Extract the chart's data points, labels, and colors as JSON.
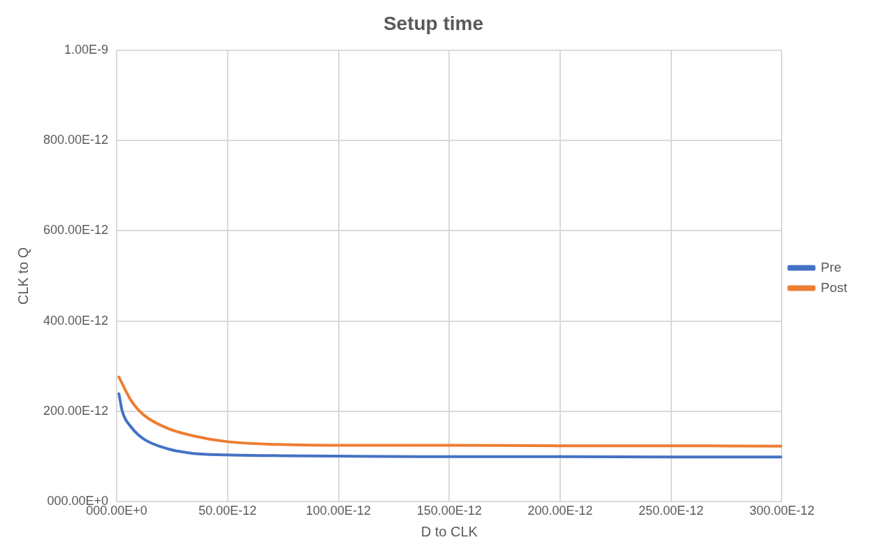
{
  "chart_data": {
    "type": "line",
    "title": "Setup time",
    "xlabel": "D to CLK",
    "ylabel": "CLK to Q",
    "legend": "right",
    "grid": true,
    "marker": "none",
    "xlim": [
      0,
      3e-10
    ],
    "xticks": [
      {
        "value": 0,
        "label": "000.00E+0"
      },
      {
        "value": 5e-11,
        "label": "50.00E-12"
      },
      {
        "value": 1e-10,
        "label": "100.00E-12"
      },
      {
        "value": 1.5e-10,
        "label": "150.00E-12"
      },
      {
        "value": 2e-10,
        "label": "200.00E-12"
      },
      {
        "value": 2.5e-10,
        "label": "250.00E-12"
      },
      {
        "value": 3e-10,
        "label": "300.00E-12"
      }
    ],
    "ylim": [
      0,
      1e-09
    ],
    "yticks": [
      {
        "value": 0,
        "label": "000.00E+0"
      },
      {
        "value": 2e-10,
        "label": "200.00E-12"
      },
      {
        "value": 4e-10,
        "label": "400.00E-12"
      },
      {
        "value": 6e-10,
        "label": "600.00E-12"
      },
      {
        "value": 8e-10,
        "label": "800.00E-12"
      },
      {
        "value": 1e-09,
        "label": "1.00E-9"
      }
    ],
    "series": [
      {
        "name": "Pre",
        "color": "#4472c4",
        "x": [
          1e-12,
          2.6e-12,
          6.6e-12,
          1.25e-11,
          2.33e-11,
          3.45e-11,
          5e-11,
          7.5e-11,
          1e-10,
          1.5e-10,
          2e-10,
          2.5e-10,
          3e-10
        ],
        "values": [
          2.39e-10,
          1.99e-10,
          1.65e-10,
          1.38e-10,
          1.17e-10,
          1.07e-10,
          1.04e-10,
          1.02e-10,
          1.01e-10,
          1e-10,
          1e-10,
          9.9e-11,
          9.9e-11
        ]
      },
      {
        "name": "Post",
        "color": "#ed7d31",
        "x": [
          1e-12,
          6.9e-12,
          1.25e-11,
          2.33e-11,
          3.45e-11,
          5e-11,
          7.25e-11,
          1.04e-10,
          1.5e-10,
          2e-10,
          2.5e-10,
          3e-10
        ],
        "values": [
          2.76e-10,
          2.21e-10,
          1.91e-10,
          1.62e-10,
          1.46e-10,
          1.33e-10,
          1.27e-10,
          1.25e-10,
          1.25e-10,
          1.24e-10,
          1.24e-10,
          1.23e-10
        ]
      }
    ]
  }
}
